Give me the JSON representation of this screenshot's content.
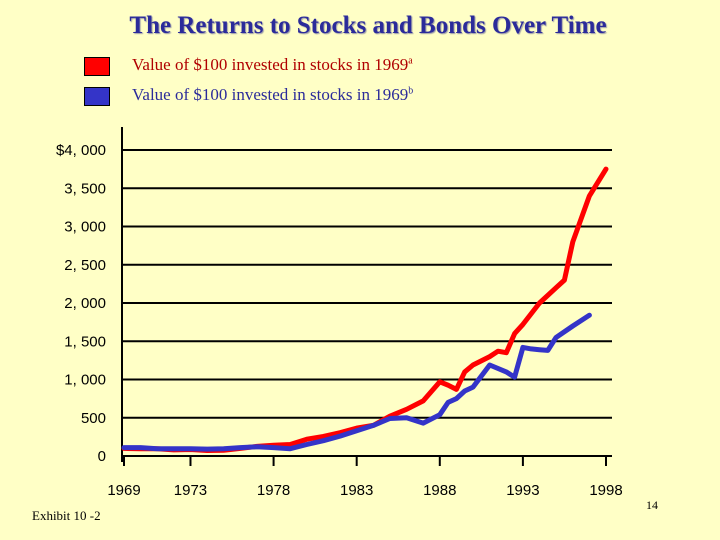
{
  "title": "The Returns to Stocks and Bonds Over Time",
  "legend": [
    {
      "label": "Value of $100 invested in stocks in 1969",
      "sup": "a",
      "color": "#ff0000",
      "text_color": "#b00000"
    },
    {
      "label": "Value of $100 invested in stocks in 1969",
      "sup": "b",
      "color": "#3434c8",
      "text_color": "#2b2b9a"
    }
  ],
  "footer_left": "Exhibit 10 -2",
  "page_number": "14",
  "chart_data": {
    "type": "line",
    "title": "The Returns to Stocks and Bonds Over Time",
    "xlabel": "",
    "ylabel": "",
    "xlim": [
      1969,
      1998
    ],
    "ylim": [
      0,
      4000
    ],
    "x_ticks": [
      1969,
      1973,
      1978,
      1983,
      1988,
      1993,
      1998
    ],
    "x_tick_labels": [
      "1969",
      "1973",
      "1978",
      "1983",
      "1988",
      "1993",
      "1998"
    ],
    "y_ticks": [
      0,
      500,
      1000,
      1500,
      2000,
      2500,
      3000,
      3500,
      4000
    ],
    "y_tick_labels": [
      "0",
      "500",
      "1, 000",
      "1, 500",
      "2, 000",
      "2, 500",
      "3, 000",
      "3, 500",
      "$4, 000"
    ],
    "grid": "horizontal",
    "series": [
      {
        "sup": "a",
        "color": "#ff0000",
        "points": [
          [
            1969,
            100
          ],
          [
            1970,
            95
          ],
          [
            1971,
            95
          ],
          [
            1972,
            80
          ],
          [
            1973,
            85
          ],
          [
            1974,
            72
          ],
          [
            1975,
            75
          ],
          [
            1976,
            100
          ],
          [
            1977,
            125
          ],
          [
            1978,
            140
          ],
          [
            1979,
            150
          ],
          [
            1980,
            220
          ],
          [
            1981,
            255
          ],
          [
            1982,
            305
          ],
          [
            1983,
            365
          ],
          [
            1984,
            400
          ],
          [
            1985,
            520
          ],
          [
            1986,
            610
          ],
          [
            1987,
            720
          ],
          [
            1988,
            970
          ],
          [
            1988.5,
            925
          ],
          [
            1989,
            870
          ],
          [
            1989.5,
            1100
          ],
          [
            1990,
            1190
          ],
          [
            1991,
            1300
          ],
          [
            1991.5,
            1370
          ],
          [
            1992,
            1350
          ],
          [
            1992.5,
            1600
          ],
          [
            1993,
            1720
          ],
          [
            1994,
            2000
          ],
          [
            1995,
            2200
          ],
          [
            1995.5,
            2300
          ],
          [
            1996,
            2800
          ],
          [
            1997,
            3400
          ],
          [
            1998,
            3750
          ]
        ]
      },
      {
        "sup": "b",
        "color": "#3434c8",
        "points": [
          [
            1969,
            110
          ],
          [
            1970,
            110
          ],
          [
            1971,
            95
          ],
          [
            1972,
            95
          ],
          [
            1973,
            95
          ],
          [
            1974,
            90
          ],
          [
            1975,
            95
          ],
          [
            1976,
            110
          ],
          [
            1977,
            120
          ],
          [
            1978,
            110
          ],
          [
            1979,
            95
          ],
          [
            1980,
            150
          ],
          [
            1981,
            200
          ],
          [
            1982,
            260
          ],
          [
            1983,
            330
          ],
          [
            1984,
            400
          ],
          [
            1985,
            490
          ],
          [
            1986,
            500
          ],
          [
            1987,
            430
          ],
          [
            1988,
            540
          ],
          [
            1988.5,
            700
          ],
          [
            1989,
            750
          ],
          [
            1989.5,
            850
          ],
          [
            1990,
            900
          ],
          [
            1991,
            1190
          ],
          [
            1992,
            1100
          ],
          [
            1992.5,
            1030
          ],
          [
            1993,
            1420
          ],
          [
            1993.5,
            1400
          ],
          [
            1994,
            1390
          ],
          [
            1994.5,
            1380
          ],
          [
            1995,
            1550
          ],
          [
            1996,
            1700
          ],
          [
            1997,
            1840
          ]
        ]
      }
    ]
  }
}
